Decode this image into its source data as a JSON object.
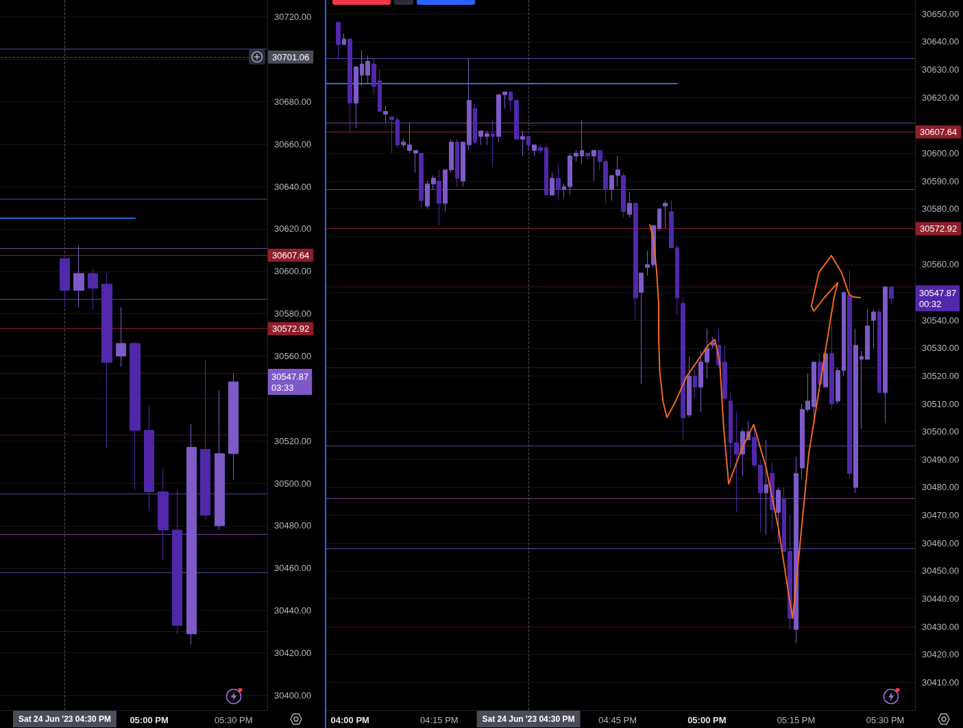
{
  "chart_data": [
    {
      "type": "candlestick",
      "x": [
        "2023-06-24T16:30",
        "2023-06-24T16:35",
        "2023-06-24T16:40",
        "2023-06-24T16:45",
        "2023-06-24T16:50",
        "2023-06-24T16:55",
        "2023-06-24T17:00",
        "2023-06-24T17:05",
        "2023-06-24T17:10",
        "2023-06-24T17:15",
        "2023-06-24T17:20",
        "2023-06-24T17:25",
        "2023-06-24T17:30"
      ],
      "ohlc": [
        [
          30606,
          30606,
          30584,
          30591
        ],
        [
          30591,
          30612,
          30583,
          30599
        ],
        [
          30599,
          30601,
          30582,
          30592
        ],
        [
          30594,
          30599,
          30517,
          30557
        ],
        [
          30560,
          30583,
          30555,
          30566
        ],
        [
          30566,
          30567,
          30497,
          30525
        ],
        [
          30525,
          30537,
          30487,
          30496
        ],
        [
          30496,
          30507,
          30464,
          30478
        ],
        [
          30478,
          30497,
          30429,
          30433
        ],
        [
          30429,
          30528,
          30424,
          30517
        ],
        [
          30516,
          30558,
          30483,
          30485
        ],
        [
          30480,
          30544,
          30478,
          30514
        ],
        [
          30514,
          30552,
          30502,
          30547.87
        ]
      ],
      "colors": [
        "#5128aa",
        "#7e5ac8",
        "#5128aa",
        "#5128aa",
        "#7e5ac8",
        "#5128aa",
        "#5128aa",
        "#5128aa",
        "#5128aa",
        "#7e5ac8",
        "#5128aa",
        "#7e5ac8",
        "#7e5ac8"
      ],
      "series": [
        {
          "type": "line",
          "x": [
            "2023-06-24T16:07",
            "2023-06-24T16:55"
          ],
          "values": [
            30625,
            30625
          ],
          "color": "#2f6fd6"
        }
      ],
      "xlim": [
        "2023-06-24T16:07",
        "2023-06-24T17:42"
      ],
      "ylim": [
        30393,
        30728
      ],
      "xticks": [
        {
          "value": "2023-06-24T17:00",
          "label": "05:00 PM"
        },
        {
          "value": "2023-06-24T17:30",
          "label": "05:30 PM"
        }
      ],
      "yticks": [
        {
          "value": 30400,
          "label": "30400.00"
        },
        {
          "value": 30420,
          "label": "30420.00"
        },
        {
          "value": 30440,
          "label": "30440.00"
        },
        {
          "value": 30460,
          "label": "30460.00"
        },
        {
          "value": 30480,
          "label": "30480.00"
        },
        {
          "value": 30500,
          "label": "30500.00"
        },
        {
          "value": 30520,
          "label": "30520.00"
        },
        {
          "value": 30540,
          "label": null
        },
        {
          "value": 30560,
          "label": "30560.00"
        },
        {
          "value": 30580,
          "label": "30580.00"
        },
        {
          "value": 30600,
          "label": "30600.00"
        },
        {
          "value": 30620,
          "label": "30620.00"
        },
        {
          "value": 30640,
          "label": "30640.00"
        },
        {
          "value": 30660,
          "label": "30660.00"
        },
        {
          "value": 30680,
          "label": "30680.00"
        },
        {
          "value": 30700,
          "label": null
        },
        {
          "value": 30720,
          "label": "30720.00"
        }
      ],
      "grid": "y",
      "ref_lines": [
        {
          "axis": "y",
          "value": 30705,
          "color": "#4e4aa0"
        },
        {
          "axis": "y",
          "value": 30634,
          "color": "#4e4aa0"
        },
        {
          "axis": "y",
          "value": 30611,
          "color": "#74449c"
        },
        {
          "axis": "y",
          "value": 30607.64,
          "label": "30607.64",
          "color": "#8e1f2b"
        },
        {
          "axis": "y",
          "value": 30587,
          "color": "#4e4aa0"
        },
        {
          "axis": "y",
          "value": 30572.92,
          "label": "30572.92",
          "color": "#8e1f2b"
        },
        {
          "axis": "y",
          "value": 30552,
          "color": "#3b1520"
        },
        {
          "axis": "y",
          "value": 30523,
          "color": "#3b1520"
        },
        {
          "axis": "y",
          "value": 30495,
          "color": "#4e4aa0"
        },
        {
          "axis": "y",
          "value": 30476,
          "color": "#74449c"
        },
        {
          "axis": "y",
          "value": 30458,
          "color": "#4e4aa0"
        },
        {
          "axis": "y",
          "value": 30430,
          "color": "#3b1520"
        },
        {
          "axis": "y",
          "value": 30701.06,
          "label": "30701.06",
          "color": "#4a4d58",
          "line_style": "dashed"
        },
        {
          "axis": "x",
          "value": "2023-06-24T16:30",
          "label": "Sat 24 Jun '23 04:30 PM",
          "color": "#4a4d58",
          "line_style": "dashed"
        }
      ],
      "annotations": [
        "30547.87\n03:33"
      ]
    },
    {
      "type": "candlestick",
      "x": [
        "2023-06-24T15:58",
        "2023-06-24T15:59",
        "2023-06-24T16:00",
        "2023-06-24T16:01",
        "2023-06-24T16:02",
        "2023-06-24T16:03",
        "2023-06-24T16:04",
        "2023-06-24T16:05",
        "2023-06-24T16:06",
        "2023-06-24T16:07",
        "2023-06-24T16:08",
        "2023-06-24T16:09",
        "2023-06-24T16:10",
        "2023-06-24T16:11",
        "2023-06-24T16:12",
        "2023-06-24T16:13",
        "2023-06-24T16:14",
        "2023-06-24T16:15",
        "2023-06-24T16:16",
        "2023-06-24T16:17",
        "2023-06-24T16:18",
        "2023-06-24T16:19",
        "2023-06-24T16:20",
        "2023-06-24T16:21",
        "2023-06-24T16:22",
        "2023-06-24T16:23",
        "2023-06-24T16:24",
        "2023-06-24T16:25",
        "2023-06-24T16:26",
        "2023-06-24T16:27",
        "2023-06-24T16:28",
        "2023-06-24T16:29",
        "2023-06-24T16:30",
        "2023-06-24T16:31",
        "2023-06-24T16:32",
        "2023-06-24T16:33",
        "2023-06-24T16:34",
        "2023-06-24T16:35",
        "2023-06-24T16:36",
        "2023-06-24T16:37",
        "2023-06-24T16:38",
        "2023-06-24T16:39",
        "2023-06-24T16:40",
        "2023-06-24T16:41",
        "2023-06-24T16:42",
        "2023-06-24T16:43",
        "2023-06-24T16:44",
        "2023-06-24T16:45",
        "2023-06-24T16:46",
        "2023-06-24T16:47",
        "2023-06-24T16:48",
        "2023-06-24T16:49",
        "2023-06-24T16:50",
        "2023-06-24T16:51",
        "2023-06-24T16:52",
        "2023-06-24T16:53",
        "2023-06-24T16:54",
        "2023-06-24T16:55",
        "2023-06-24T16:56",
        "2023-06-24T16:57",
        "2023-06-24T16:58",
        "2023-06-24T16:59",
        "2023-06-24T17:00",
        "2023-06-24T17:01",
        "2023-06-24T17:02",
        "2023-06-24T17:03",
        "2023-06-24T17:04",
        "2023-06-24T17:05",
        "2023-06-24T17:06",
        "2023-06-24T17:07",
        "2023-06-24T17:08",
        "2023-06-24T17:09",
        "2023-06-24T17:10",
        "2023-06-24T17:11",
        "2023-06-24T17:12",
        "2023-06-24T17:13",
        "2023-06-24T17:14",
        "2023-06-24T17:15",
        "2023-06-24T17:16",
        "2023-06-24T17:17",
        "2023-06-24T17:18",
        "2023-06-24T17:19",
        "2023-06-24T17:20",
        "2023-06-24T17:21",
        "2023-06-24T17:22",
        "2023-06-24T17:23",
        "2023-06-24T17:24",
        "2023-06-24T17:25",
        "2023-06-24T17:26",
        "2023-06-24T17:27",
        "2023-06-24T17:28",
        "2023-06-24T17:29",
        "2023-06-24T17:30",
        "2023-06-24T17:31"
      ],
      "ohlc": [
        [
          30647,
          30647,
          30634,
          30639
        ],
        [
          30639,
          30643,
          30639,
          30641
        ],
        [
          30641,
          30641,
          30607,
          30618
        ],
        [
          30618,
          30631,
          30609,
          30631
        ],
        [
          30628,
          30637,
          30624,
          30632
        ],
        [
          30628,
          30635,
          30625,
          30633
        ],
        [
          30632,
          30634,
          30621,
          30624
        ],
        [
          30626,
          30630,
          30615,
          30615
        ],
        [
          30614,
          30617,
          30611,
          30615
        ],
        [
          30613,
          30613,
          30600,
          30612
        ],
        [
          30612,
          30613,
          30602,
          30603
        ],
        [
          30603,
          30605,
          30602,
          30604
        ],
        [
          30601,
          30611,
          30600,
          30603
        ],
        [
          30600,
          30601,
          30593,
          30601
        ],
        [
          30600,
          30600,
          30580,
          30583
        ],
        [
          30581,
          30590,
          30580,
          30589
        ],
        [
          30589,
          30592,
          30587,
          30591
        ],
        [
          30590,
          30594,
          30574,
          30582
        ],
        [
          30582,
          30594,
          30579,
          30594
        ],
        [
          30594,
          30605,
          30593,
          30604
        ],
        [
          30604,
          30605,
          30588,
          30591
        ],
        [
          30590,
          30604,
          30588,
          30604
        ],
        [
          30603,
          30634,
          30601,
          30619
        ],
        [
          30616,
          30618,
          30603,
          30604
        ],
        [
          30606,
          30608,
          30603,
          30608
        ],
        [
          30606,
          30608,
          30603,
          30607
        ],
        [
          30607,
          30612,
          30595,
          30606
        ],
        [
          30606,
          30621,
          30604,
          30621
        ],
        [
          30621,
          30622,
          30616,
          30622
        ],
        [
          30622,
          30622,
          30615,
          30619
        ],
        [
          30619,
          30619,
          30605,
          30605
        ],
        [
          30605,
          30608,
          30599,
          30606
        ],
        [
          30606,
          30606,
          30601,
          30603
        ],
        [
          30601,
          30603,
          30599,
          30603
        ],
        [
          30602,
          30603,
          30600,
          30601
        ],
        [
          30602,
          30603,
          30585,
          30585
        ],
        [
          30585,
          30593,
          30585,
          30591
        ],
        [
          30591,
          30596,
          30583,
          30587
        ],
        [
          30587,
          30589,
          30584,
          30588
        ],
        [
          30588,
          30600,
          30585,
          30599
        ],
        [
          30599,
          30601,
          30597,
          30600
        ],
        [
          30599,
          30612,
          30596,
          30601
        ],
        [
          30600,
          30600,
          30598,
          30599
        ],
        [
          30599,
          30601,
          30590,
          30601
        ],
        [
          30601,
          30601,
          30594,
          30597
        ],
        [
          30597,
          30598,
          30582,
          30587
        ],
        [
          30587,
          30592,
          30583,
          30592
        ],
        [
          30592,
          30599,
          30588,
          30594
        ],
        [
          30592,
          30593,
          30577,
          30579
        ],
        [
          30578,
          30586,
          30577,
          30582
        ],
        [
          30582,
          30582,
          30540,
          30548
        ],
        [
          30550,
          30557,
          30517,
          30557
        ],
        [
          30559,
          30565,
          30556,
          30560
        ],
        [
          30560,
          30574,
          30559,
          30574
        ],
        [
          30573,
          30580,
          30572,
          30580
        ],
        [
          30581,
          30583,
          30573,
          30582
        ],
        [
          30579,
          30583,
          30566,
          30566
        ],
        [
          30566,
          30567,
          30542,
          30548
        ],
        [
          30546,
          30548,
          30497,
          30505
        ],
        [
          30506,
          30527,
          30505,
          30520
        ],
        [
          30520,
          30522,
          30512,
          30516
        ],
        [
          30516,
          30529,
          30507,
          30525
        ],
        [
          30525,
          30537,
          30519,
          30530
        ],
        [
          30531,
          30534,
          30530,
          30532
        ],
        [
          30531,
          30537,
          30523,
          30524
        ],
        [
          30525,
          30531,
          30511,
          30512
        ],
        [
          30511,
          30514,
          30487,
          30496
        ],
        [
          30496,
          30507,
          30471,
          30492
        ],
        [
          30492,
          30501,
          30484,
          30500
        ],
        [
          30497,
          30504,
          30497,
          30500
        ],
        [
          30498,
          30501,
          30487,
          30488
        ],
        [
          30488,
          30490,
          30464,
          30478
        ],
        [
          30478,
          30497,
          30463,
          30481
        ],
        [
          30485,
          30489,
          30465,
          30472
        ],
        [
          30471,
          30480,
          30460,
          30479
        ],
        [
          30476,
          30480,
          30457,
          30457
        ],
        [
          30457,
          30470,
          30429,
          30433
        ],
        [
          30429,
          30491,
          30424,
          30485
        ],
        [
          30487,
          30510,
          30483,
          30508
        ],
        [
          30508,
          30521,
          30507,
          30511
        ],
        [
          30509,
          30525,
          30505,
          30525
        ],
        [
          30525,
          30528,
          30517,
          30517
        ],
        [
          30516,
          30528,
          30516,
          30528
        ],
        [
          30528,
          30539,
          30508,
          30510
        ],
        [
          30511,
          30523,
          30510,
          30522
        ],
        [
          30522,
          30550,
          30520,
          30550
        ],
        [
          30549,
          30558,
          30483,
          30485
        ],
        [
          30480,
          30537,
          30478,
          30531
        ],
        [
          30526,
          30529,
          30501,
          30527
        ],
        [
          30526,
          30544,
          30526,
          30538
        ],
        [
          30540,
          30544,
          30530,
          30543
        ],
        [
          30543,
          30544,
          30514,
          30514
        ],
        [
          30514,
          30552,
          30503,
          30552
        ],
        [
          30552,
          30552,
          30546,
          30547.87
        ]
      ],
      "colors": [
        "#5128aa",
        "#7e5ac8",
        "#5128aa",
        "#7e5ac8",
        "#7e5ac8",
        "#7e5ac8",
        "#5128aa",
        "#5128aa",
        "#7e5ac8",
        "#5128aa",
        "#5128aa",
        "#7e5ac8",
        "#7e5ac8",
        "#7e5ac8",
        "#5128aa",
        "#7e5ac8",
        "#7e5ac8",
        "#5128aa",
        "#7e5ac8",
        "#7e5ac8",
        "#5128aa",
        "#7e5ac8",
        "#7e5ac8",
        "#5128aa",
        "#7e5ac8",
        "#7e5ac8",
        "#5128aa",
        "#7e5ac8",
        "#7e5ac8",
        "#5128aa",
        "#5128aa",
        "#7e5ac8",
        "#5128aa",
        "#7e5ac8",
        "#5128aa",
        "#5128aa",
        "#7e5ac8",
        "#5128aa",
        "#7e5ac8",
        "#7e5ac8",
        "#7e5ac8",
        "#7e5ac8",
        "#5128aa",
        "#7e5ac8",
        "#5128aa",
        "#5128aa",
        "#7e5ac8",
        "#7e5ac8",
        "#5128aa",
        "#7e5ac8",
        "#5128aa",
        "#7e5ac8",
        "#7e5ac8",
        "#7e5ac8",
        "#7e5ac8",
        "#7e5ac8",
        "#5128aa",
        "#5128aa",
        "#5128aa",
        "#7e5ac8",
        "#5128aa",
        "#7e5ac8",
        "#7e5ac8",
        "#7e5ac8",
        "#5128aa",
        "#5128aa",
        "#5128aa",
        "#5128aa",
        "#7e5ac8",
        "#7e5ac8",
        "#5128aa",
        "#5128aa",
        "#7e5ac8",
        "#5128aa",
        "#7e5ac8",
        "#5128aa",
        "#5128aa",
        "#7e5ac8",
        "#7e5ac8",
        "#7e5ac8",
        "#7e5ac8",
        "#5128aa",
        "#7e5ac8",
        "#5128aa",
        "#7e5ac8",
        "#7e5ac8",
        "#5128aa",
        "#7e5ac8",
        "#7e5ac8",
        "#7e5ac8",
        "#7e5ac8",
        "#5128aa",
        "#7e5ac8",
        "#5128aa"
      ],
      "series": [
        {
          "type": "line",
          "x": [
            "2023-06-24T15:56",
            "2023-06-24T16:55"
          ],
          "values": [
            30625,
            30625
          ],
          "color": "#2f6fd6"
        }
      ],
      "xlim": [
        "2023-06-24T15:56",
        "2023-06-24T17:35"
      ],
      "ylim": [
        30400,
        30655
      ],
      "xticks": [
        {
          "value": "2023-06-24T16:00",
          "label": "04:00 PM"
        },
        {
          "value": "2023-06-24T16:15",
          "label": "04:15 PM"
        },
        {
          "value": "2023-06-24T16:45",
          "label": "04:45 PM"
        },
        {
          "value": "2023-06-24T17:00",
          "label": "05:00 PM"
        },
        {
          "value": "2023-06-24T17:15",
          "label": "05:15 PM"
        },
        {
          "value": "2023-06-24T17:30",
          "label": "05:30 PM"
        }
      ],
      "yticks": [
        {
          "value": 30410,
          "label": "30410.00"
        },
        {
          "value": 30420,
          "label": "30420.00"
        },
        {
          "value": 30430,
          "label": "30430.00"
        },
        {
          "value": 30440,
          "label": "30440.00"
        },
        {
          "value": 30450,
          "label": "30450.00"
        },
        {
          "value": 30460,
          "label": "30460.00"
        },
        {
          "value": 30470,
          "label": "30470.00"
        },
        {
          "value": 30480,
          "label": "30480.00"
        },
        {
          "value": 30490,
          "label": "30490.00"
        },
        {
          "value": 30500,
          "label": "30500.00"
        },
        {
          "value": 30510,
          "label": "30510.00"
        },
        {
          "value": 30520,
          "label": "30520.00"
        },
        {
          "value": 30530,
          "label": "30530.00"
        },
        {
          "value": 30540,
          "label": "30540.00"
        },
        {
          "value": 30550,
          "label": null
        },
        {
          "value": 30560,
          "label": "30560.00"
        },
        {
          "value": 30570,
          "label": null
        },
        {
          "value": 30580,
          "label": "30580.00"
        },
        {
          "value": 30590,
          "label": "30590.00"
        },
        {
          "value": 30600,
          "label": "30600.00"
        },
        {
          "value": 30610,
          "label": null
        },
        {
          "value": 30620,
          "label": "30620.00"
        },
        {
          "value": 30630,
          "label": "30630.00"
        },
        {
          "value": 30640,
          "label": "30640.00"
        },
        {
          "value": 30650,
          "label": "30650.00"
        }
      ],
      "grid": "y",
      "ref_lines": [
        {
          "axis": "y",
          "value": 30634,
          "color": "#4e4aa0"
        },
        {
          "axis": "y",
          "value": 30611,
          "color": "#74449c"
        },
        {
          "axis": "y",
          "value": 30607.64,
          "label": "30607.64",
          "color": "#8e1f2b"
        },
        {
          "axis": "y",
          "value": 30587,
          "color": "#4e4aa0"
        },
        {
          "axis": "y",
          "value": 30572.92,
          "label": "30572.92",
          "color": "#8e1f2b"
        },
        {
          "axis": "y",
          "value": 30552,
          "color": "#3b1520"
        },
        {
          "axis": "y",
          "value": 30523,
          "color": "#3b1520"
        },
        {
          "axis": "y",
          "value": 30495,
          "color": "#4e4aa0"
        },
        {
          "axis": "y",
          "value": 30476,
          "color": "#74449c"
        },
        {
          "axis": "y",
          "value": 30458,
          "color": "#4e4aa0"
        },
        {
          "axis": "y",
          "value": 30430,
          "color": "#3b1520"
        },
        {
          "axis": "x",
          "value": "2023-06-24T16:30",
          "label": "Sat 24 Jun '23 04:30 PM",
          "color": "#4a4d58",
          "line_style": "dashed"
        }
      ],
      "annotations": [
        "30547.87\n00:32"
      ]
    }
  ]
}
